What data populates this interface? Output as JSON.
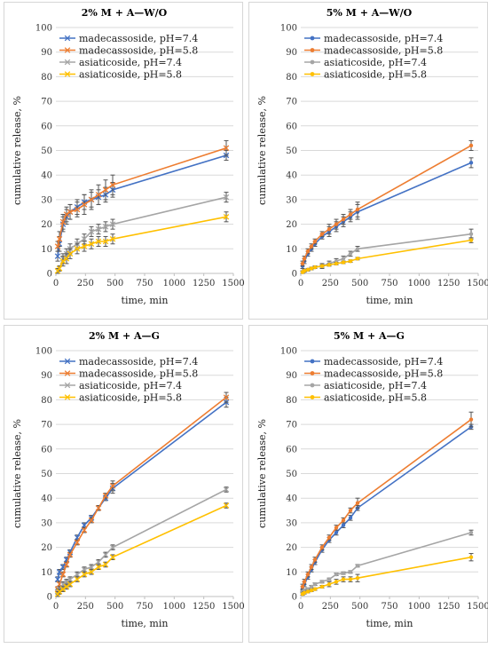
{
  "colors": {
    "madecassoside_7_4": "#4472C4",
    "madecassoside_5_8": "#ED7D31",
    "asiaticoside_7_4": "#A5A5A5",
    "asiaticoside_5_8": "#FFC000",
    "grid": "#D9D9D9",
    "errorbar": "#555555"
  },
  "chart_data": [
    {
      "type": "line",
      "title": "2% M + A—W/O",
      "xlabel": "time, min",
      "ylabel": "cumulative release, %",
      "xlim": [
        0,
        1500
      ],
      "ylim": [
        0,
        100
      ],
      "xticks": [
        "0",
        "250",
        "500",
        "750",
        "1000",
        "1250",
        "1500"
      ],
      "yticks": [
        "0",
        "10",
        "20",
        "30",
        "40",
        "50",
        "60",
        "70",
        "80",
        "90",
        "100"
      ],
      "grid": "horizontal",
      "legend": "top-left",
      "marker": "x",
      "series": [
        {
          "name": "madecassoside, pH=7.4",
          "color_key": "madecassoside_7_4",
          "x": [
            15,
            30,
            60,
            90,
            120,
            180,
            240,
            300,
            360,
            420,
            480,
            1440
          ],
          "y": [
            7,
            12,
            20,
            23,
            25,
            27,
            29,
            30,
            31,
            32,
            34,
            48
          ],
          "err": [
            2,
            3,
            3,
            3,
            3,
            3,
            3,
            3,
            3,
            3,
            3,
            2
          ]
        },
        {
          "name": "madecassoside, pH=5.8",
          "color_key": "madecassoside_5_8",
          "x": [
            15,
            30,
            60,
            90,
            120,
            180,
            240,
            300,
            360,
            420,
            480,
            1440
          ],
          "y": [
            11,
            14,
            21,
            24,
            25,
            26,
            28,
            30,
            32,
            34,
            36,
            51
          ],
          "err": [
            2,
            3,
            3,
            3,
            3,
            3,
            4,
            4,
            4,
            4,
            4,
            3
          ]
        },
        {
          "name": "asiaticoside, pH=7.4",
          "color_key": "asiaticoside_7_4",
          "x": [
            15,
            30,
            60,
            90,
            120,
            180,
            240,
            300,
            360,
            420,
            480,
            1440
          ],
          "y": [
            1,
            2,
            6,
            8,
            10,
            12,
            14,
            17,
            18,
            19,
            20,
            31
          ],
          "err": [
            1,
            1,
            2,
            2,
            2,
            2,
            2,
            2,
            2,
            2,
            2,
            2
          ]
        },
        {
          "name": "asiaticoside, pH=5.8",
          "color_key": "asiaticoside_5_8",
          "x": [
            15,
            30,
            60,
            90,
            120,
            180,
            240,
            300,
            360,
            420,
            480,
            1440
          ],
          "y": [
            1,
            2,
            5,
            6,
            8,
            10,
            11,
            12,
            13,
            13,
            14,
            23
          ],
          "err": [
            1,
            1,
            2,
            2,
            2,
            2,
            2,
            2,
            2,
            2,
            2,
            2
          ]
        }
      ]
    },
    {
      "type": "line",
      "title": "5% M + A—W/O",
      "xlabel": "time, min",
      "ylabel": "cumulative release, %",
      "xlim": [
        0,
        1500
      ],
      "ylim": [
        0,
        100
      ],
      "xticks": [
        "0",
        "250",
        "500",
        "750",
        "1000",
        "1250",
        "1500"
      ],
      "yticks": [
        "0",
        "10",
        "20",
        "30",
        "40",
        "50",
        "60",
        "70",
        "80",
        "90",
        "100"
      ],
      "grid": "horizontal",
      "legend": "top-left",
      "marker": "circle",
      "series": [
        {
          "name": "madecassoside, pH=7.4",
          "color_key": "madecassoside_7_4",
          "x": [
            15,
            30,
            60,
            90,
            120,
            180,
            240,
            300,
            360,
            420,
            480,
            1440
          ],
          "y": [
            3,
            5,
            8,
            10,
            12,
            15,
            17,
            19,
            21,
            23,
            25,
            45
          ],
          "err": [
            1,
            1,
            1,
            1,
            1,
            1,
            2,
            2,
            2,
            2,
            3,
            2
          ]
        },
        {
          "name": "madecassoside, pH=5.8",
          "color_key": "madecassoside_5_8",
          "x": [
            15,
            30,
            60,
            90,
            120,
            180,
            240,
            300,
            360,
            420,
            480,
            1440
          ],
          "y": [
            4,
            6,
            9,
            11,
            13,
            16,
            18,
            20,
            22,
            24,
            26,
            52
          ],
          "err": [
            1,
            1,
            1,
            1,
            1,
            1,
            2,
            2,
            2,
            2,
            3,
            2
          ]
        },
        {
          "name": "asiaticoside, pH=7.4",
          "color_key": "asiaticoside_7_4",
          "x": [
            15,
            30,
            60,
            90,
            120,
            180,
            240,
            300,
            360,
            420,
            480,
            1440
          ],
          "y": [
            0.5,
            1,
            1.5,
            2,
            2.5,
            3,
            4,
            5,
            6,
            8,
            10,
            16
          ],
          "err": [
            0.5,
            0.5,
            0.5,
            0.5,
            0.5,
            1,
            1,
            1,
            1,
            1,
            1,
            2
          ]
        },
        {
          "name": "asiaticoside, pH=5.8",
          "color_key": "asiaticoside_5_8",
          "x": [
            15,
            30,
            60,
            90,
            120,
            180,
            240,
            300,
            360,
            420,
            480,
            1440
          ],
          "y": [
            0.5,
            1,
            1.5,
            2,
            2.5,
            3,
            3.5,
            4,
            4.5,
            5,
            6,
            13.5
          ],
          "err": [
            0.5,
            0.5,
            0.5,
            0.5,
            0.5,
            0.5,
            0.5,
            0.5,
            0.5,
            0.5,
            0.5,
            1
          ]
        }
      ]
    },
    {
      "type": "line",
      "title": "2% M + A—G",
      "xlabel": "time, min",
      "ylabel": "cumulative release, %",
      "xlim": [
        0,
        1500
      ],
      "ylim": [
        0,
        100
      ],
      "xticks": [
        "0",
        "250",
        "500",
        "750",
        "1000",
        "1250",
        "1500"
      ],
      "yticks": [
        "0",
        "10",
        "20",
        "30",
        "40",
        "50",
        "60",
        "70",
        "80",
        "90",
        "100"
      ],
      "grid": "horizontal",
      "legend": "top-left",
      "marker": "x",
      "series": [
        {
          "name": "madecassoside, pH=7.4",
          "color_key": "madecassoside_7_4",
          "x": [
            15,
            30,
            60,
            90,
            120,
            180,
            240,
            300,
            360,
            420,
            480,
            1440
          ],
          "y": [
            7,
            10,
            12,
            15,
            18,
            24,
            29,
            32,
            36,
            40,
            44,
            79
          ],
          "err": [
            1,
            1,
            1,
            1,
            1,
            1,
            1,
            1,
            1,
            1,
            2,
            2
          ]
        },
        {
          "name": "madecassoside, pH=5.8",
          "color_key": "madecassoside_5_8",
          "x": [
            15,
            30,
            60,
            90,
            120,
            180,
            240,
            300,
            360,
            420,
            480,
            1440
          ],
          "y": [
            3,
            5,
            9,
            13,
            17,
            22,
            27,
            31,
            36,
            41,
            45,
            81
          ],
          "err": [
            1,
            1,
            1,
            1,
            1,
            1,
            1,
            1,
            1,
            1,
            2,
            2
          ]
        },
        {
          "name": "asiaticoside, pH=7.4",
          "color_key": "asiaticoside_7_4",
          "x": [
            15,
            30,
            60,
            90,
            120,
            180,
            240,
            300,
            360,
            420,
            480,
            1440
          ],
          "y": [
            2,
            3,
            5,
            6,
            7,
            9,
            11,
            12,
            14,
            17,
            20,
            43.5
          ],
          "err": [
            1,
            1,
            1,
            1,
            1,
            1,
            1,
            1,
            1,
            1,
            1,
            1
          ]
        },
        {
          "name": "asiaticoside, pH=5.8",
          "color_key": "asiaticoside_5_8",
          "x": [
            15,
            30,
            60,
            90,
            120,
            180,
            240,
            300,
            360,
            420,
            480,
            1440
          ],
          "y": [
            1,
            2,
            3,
            4,
            5,
            7,
            9,
            10,
            12,
            13,
            16,
            37
          ],
          "err": [
            1,
            1,
            1,
            1,
            1,
            1,
            1,
            1,
            1,
            1,
            1,
            1
          ]
        }
      ]
    },
    {
      "type": "line",
      "title": "5% M + A—G",
      "xlabel": "time, min",
      "ylabel": "cumulative release, %",
      "xlim": [
        0,
        1500
      ],
      "ylim": [
        0,
        100
      ],
      "xticks": [
        "0",
        "250",
        "500",
        "750",
        "1000",
        "1250",
        "1500"
      ],
      "yticks": [
        "0",
        "10",
        "20",
        "30",
        "40",
        "50",
        "60",
        "70",
        "80",
        "90",
        "100"
      ],
      "grid": "horizontal",
      "legend": "top-left",
      "marker": "circle",
      "series": [
        {
          "name": "madecassoside, pH=7.4",
          "color_key": "madecassoside_7_4",
          "x": [
            15,
            30,
            60,
            90,
            120,
            180,
            240,
            300,
            360,
            420,
            480,
            1440
          ],
          "y": [
            3,
            5,
            8,
            11,
            14,
            19,
            23,
            26,
            29,
            32,
            36,
            69
          ],
          "err": [
            1,
            1,
            1,
            1,
            1,
            1,
            1,
            1,
            1,
            1,
            1,
            1
          ]
        },
        {
          "name": "madecassoside, pH=5.8",
          "color_key": "madecassoside_5_8",
          "x": [
            15,
            30,
            60,
            90,
            120,
            180,
            240,
            300,
            360,
            420,
            480,
            1440
          ],
          "y": [
            4,
            6,
            9,
            12,
            15,
            20,
            24,
            28,
            31,
            35,
            38,
            72
          ],
          "err": [
            1,
            1,
            1,
            1,
            1,
            1,
            1,
            1,
            1,
            1,
            2,
            3
          ]
        },
        {
          "name": "asiaticoside, pH=7.4",
          "color_key": "asiaticoside_7_4",
          "x": [
            15,
            30,
            60,
            90,
            120,
            180,
            240,
            300,
            360,
            420,
            480,
            1440
          ],
          "y": [
            2,
            2.5,
            3,
            4,
            5,
            6,
            7,
            9,
            9.5,
            10,
            12.5,
            26
          ],
          "err": [
            0.5,
            0.5,
            0.5,
            0.5,
            0.5,
            0.5,
            0.5,
            0.5,
            0.5,
            0.5,
            0.5,
            1
          ]
        },
        {
          "name": "asiaticoside, pH=5.8",
          "color_key": "asiaticoside_5_8",
          "x": [
            15,
            30,
            60,
            90,
            120,
            180,
            240,
            300,
            360,
            420,
            480,
            1440
          ],
          "y": [
            1,
            1.5,
            2,
            2.5,
            3,
            4,
            5,
            6,
            7,
            7,
            7.5,
            16
          ],
          "err": [
            0.5,
            0.5,
            0.5,
            0.5,
            0.5,
            0.5,
            1,
            1,
            1,
            1,
            1.5,
            1.5
          ]
        }
      ]
    }
  ]
}
